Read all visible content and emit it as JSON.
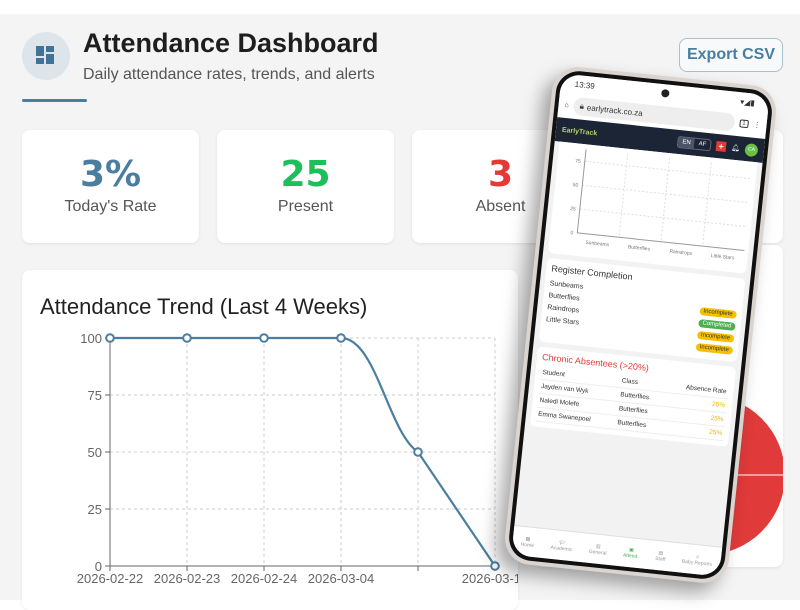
{
  "header": {
    "title": "Attendance Dashboard",
    "subtitle": "Daily attendance rates, trends, and alerts",
    "export_label": "Export CSV",
    "icon": "dashboard-icon"
  },
  "stats": [
    {
      "value": "3%",
      "label": "Today's Rate",
      "color": "#4a7ea0"
    },
    {
      "value": "25",
      "label": "Present",
      "color": "#1cbf5a"
    },
    {
      "value": "3",
      "label": "Absent",
      "color": "#e53935"
    }
  ],
  "chart_data": {
    "type": "line",
    "title": "Attendance Trend (Last 4 Weeks)",
    "categories": [
      "2026-02-22",
      "2026-02-23",
      "2026-02-24",
      "2026-03-04",
      "",
      "2026-03-17"
    ],
    "values": [
      100,
      100,
      100,
      100,
      50,
      0
    ],
    "yticks": [
      "0",
      "25",
      "50",
      "75",
      "100"
    ],
    "ylim": [
      0,
      100
    ],
    "grid": true,
    "color": "#4a7ea0"
  },
  "phone": {
    "time": "13:39",
    "url": "earlytrack.co.za",
    "tab_count": "1",
    "logo": "EarlyTrack",
    "lang": [
      "EN",
      "AF"
    ],
    "avatar": "CA",
    "mini_chart": {
      "yticks": [
        "75",
        "50",
        "25",
        "0"
      ],
      "categories": [
        "Sunbeams",
        "Butterflies",
        "Raindrops",
        "Little Stars"
      ]
    },
    "register": {
      "title": "Register Completion",
      "classes": [
        "Sunbeams",
        "Butterflies",
        "Raindrops",
        "Little Stars"
      ],
      "statuses": [
        "Incomplete",
        "Completed",
        "Incomplete",
        "Incomplete"
      ]
    },
    "absentees": {
      "title": "Chronic Absentees (>20%)",
      "columns": [
        "Student",
        "Class",
        "Absence Rate"
      ],
      "rows": [
        [
          "Jayden van Wyk",
          "Butterflies",
          "25%"
        ],
        [
          "Naledi Molefe",
          "Butterflies",
          "25%"
        ],
        [
          "Emma Swanepoel",
          "Butterflies",
          "25%"
        ]
      ]
    },
    "nav": [
      "Home",
      "Academic",
      "General",
      "Attend.",
      "Staff",
      "Baby Reports"
    ]
  }
}
